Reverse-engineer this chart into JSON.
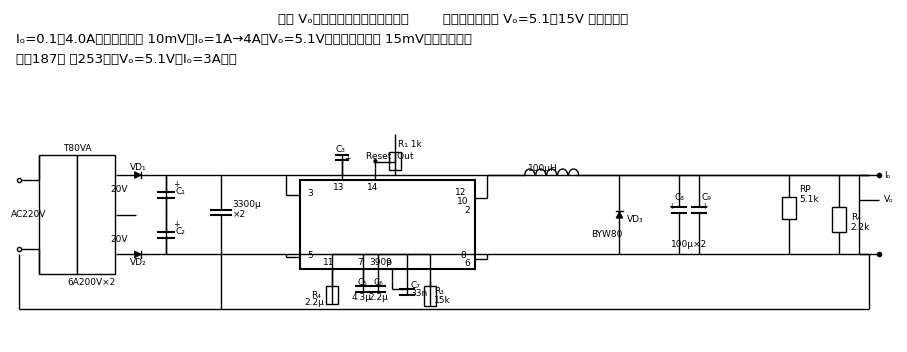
{
  "bg_color": "#ffffff",
  "text_color": "#000000",
  "fig_width": 9.07,
  "fig_height": 3.52,
  "dpi": 100,
  "line1": "输出 Vₒ可调节电源。原理电路如图        所示。该电源的 Vₒ=5.1～15V 连续可调，",
  "line2": "Iₒ=0.1～4.0A，负载调节为 10mV（Iₒ=1A→4A，Vₒ=5.1V），电源调节为 15mV（市电变化范",
  "line3": "围：187㎧ ～253㎧，Vₒ=5.1V，Iₒ=3A）。"
}
